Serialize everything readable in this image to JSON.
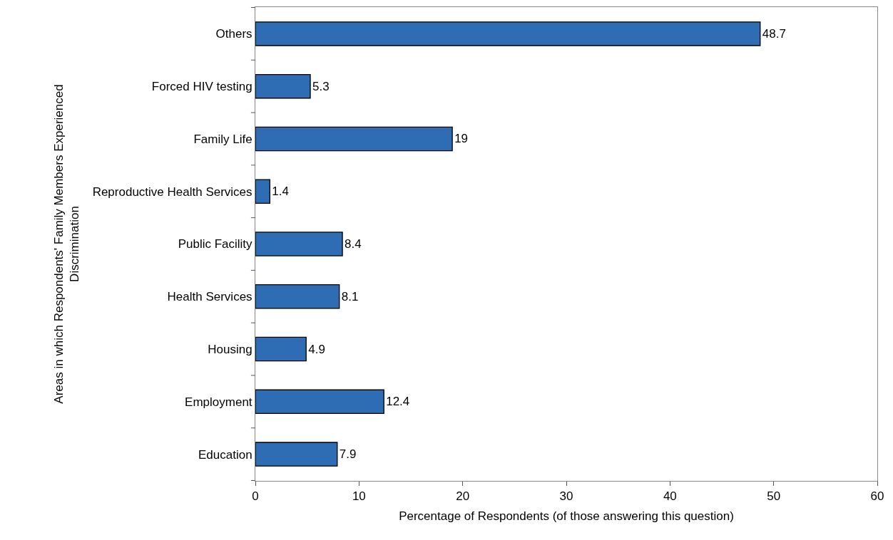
{
  "chart_data": {
    "type": "bar",
    "orientation": "horizontal",
    "xlabel": "Percentage of Respondents (of those answering this question)",
    "ylabel": "Areas in which Respondents' Family Members Experienced Discrimination",
    "categories": [
      "Others",
      "Forced HIV testing",
      "Family Life",
      "Reproductive Health Services",
      "Public Facility",
      "Health Services",
      "Housing",
      "Employment",
      "Education"
    ],
    "values": [
      48.7,
      5.3,
      19,
      1.4,
      8.4,
      8.1,
      4.9,
      12.4,
      7.9
    ],
    "color": "#2e6db4",
    "data_labels": true,
    "xlim": [
      0,
      60
    ],
    "xticks": [
      0,
      10,
      20,
      30,
      40,
      50,
      60
    ]
  }
}
